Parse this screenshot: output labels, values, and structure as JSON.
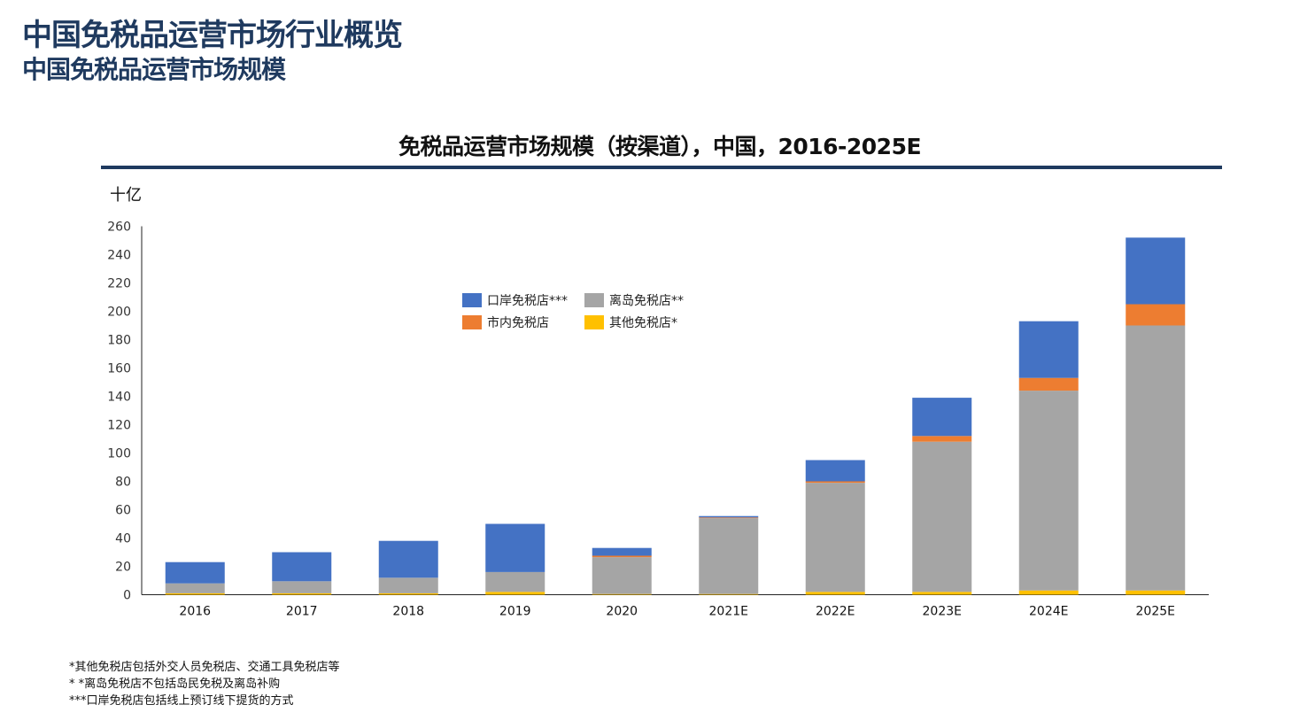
{
  "header": {
    "title": "中国免税品运营市场行业概览",
    "subtitle": "中国免税品运营市场规模"
  },
  "colors": {
    "header": "#1F3A5F",
    "rule": "#1F3A5F",
    "port": "#4472C4",
    "island": "#A5A5A5",
    "downtown": "#ED7D31",
    "other": "#FFC000"
  },
  "chart_data": {
    "type": "bar",
    "stacked": true,
    "title": "免税品运营市场规模（按渠道），中国，2016-2025E",
    "unit_label": "十亿",
    "categories": [
      "2016",
      "2017",
      "2018",
      "2019",
      "2020",
      "2021E",
      "2022E",
      "2023E",
      "2024E",
      "2025E"
    ],
    "ylim": [
      0,
      260
    ],
    "yticks": [
      0,
      20,
      40,
      60,
      80,
      100,
      120,
      140,
      160,
      180,
      200,
      220,
      240,
      260
    ],
    "legend_position": "top-left-center",
    "series": [
      {
        "name": "其他免税店*",
        "color": "#FFC000",
        "values": [
          1.0,
          1.0,
          1.0,
          2.0,
          0.5,
          0.5,
          2.0,
          2.0,
          3.0,
          3.0
        ]
      },
      {
        "name": "离岛免税店**",
        "color": "#A5A5A5",
        "values": [
          7.0,
          8.5,
          11.0,
          14.0,
          26.0,
          53.5,
          77.0,
          106.0,
          141.0,
          187.0
        ]
      },
      {
        "name": "市内免税店",
        "color": "#ED7D31",
        "values": [
          0.0,
          0.0,
          0.0,
          0.0,
          1.0,
          0.5,
          1.0,
          4.0,
          9.0,
          15.0
        ]
      },
      {
        "name": "口岸免税店***",
        "color": "#4472C4",
        "values": [
          15.0,
          20.5,
          26.0,
          34.0,
          5.5,
          1.0,
          15.0,
          27.0,
          40.0,
          47.0
        ]
      }
    ],
    "legend_order": [
      "口岸免税店***",
      "离岛免税店**",
      "市内免税店",
      "其他免税店*"
    ]
  },
  "footnotes": [
    "*其他免税店包括外交人员免税店、交通工具免税店等",
    "* *离岛免税店不包括岛民免税及离岛补购",
    "***口岸免税店包括线上预订线下提货的方式"
  ]
}
